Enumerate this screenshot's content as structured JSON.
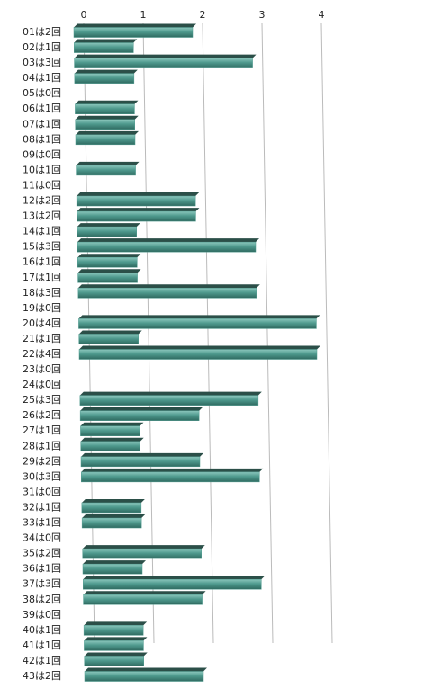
{
  "chart_data": {
    "type": "bar",
    "orientation": "horizontal",
    "categories": [
      "01は2回",
      "02は1回",
      "03は3回",
      "04は1回",
      "05は0回",
      "06は1回",
      "07は1回",
      "08は1回",
      "09は0回",
      "10は1回",
      "11は0回",
      "12は2回",
      "13は2回",
      "14は1回",
      "15は3回",
      "16は1回",
      "17は1回",
      "18は3回",
      "19は0回",
      "20は4回",
      "21は1回",
      "22は4回",
      "23は0回",
      "24は0回",
      "25は3回",
      "26は2回",
      "27は1回",
      "28は1回",
      "29は2回",
      "30は3回",
      "31は0回",
      "32は1回",
      "33は1回",
      "34は0回",
      "35は2回",
      "36は1回",
      "37は3回",
      "38は2回",
      "39は0回",
      "40は1回",
      "41は1回",
      "42は1回",
      "43は2回"
    ],
    "values": [
      2,
      1,
      3,
      1,
      0,
      1,
      1,
      1,
      0,
      1,
      0,
      2,
      2,
      1,
      3,
      1,
      1,
      3,
      0,
      4,
      1,
      4,
      0,
      0,
      3,
      2,
      1,
      1,
      2,
      3,
      0,
      1,
      1,
      0,
      2,
      1,
      3,
      2,
      0,
      1,
      1,
      1,
      2
    ],
    "color": "#4f9a8e",
    "xlim": [
      0,
      4
    ],
    "xticks": [
      0,
      1,
      2,
      3,
      4
    ],
    "grid": true
  }
}
